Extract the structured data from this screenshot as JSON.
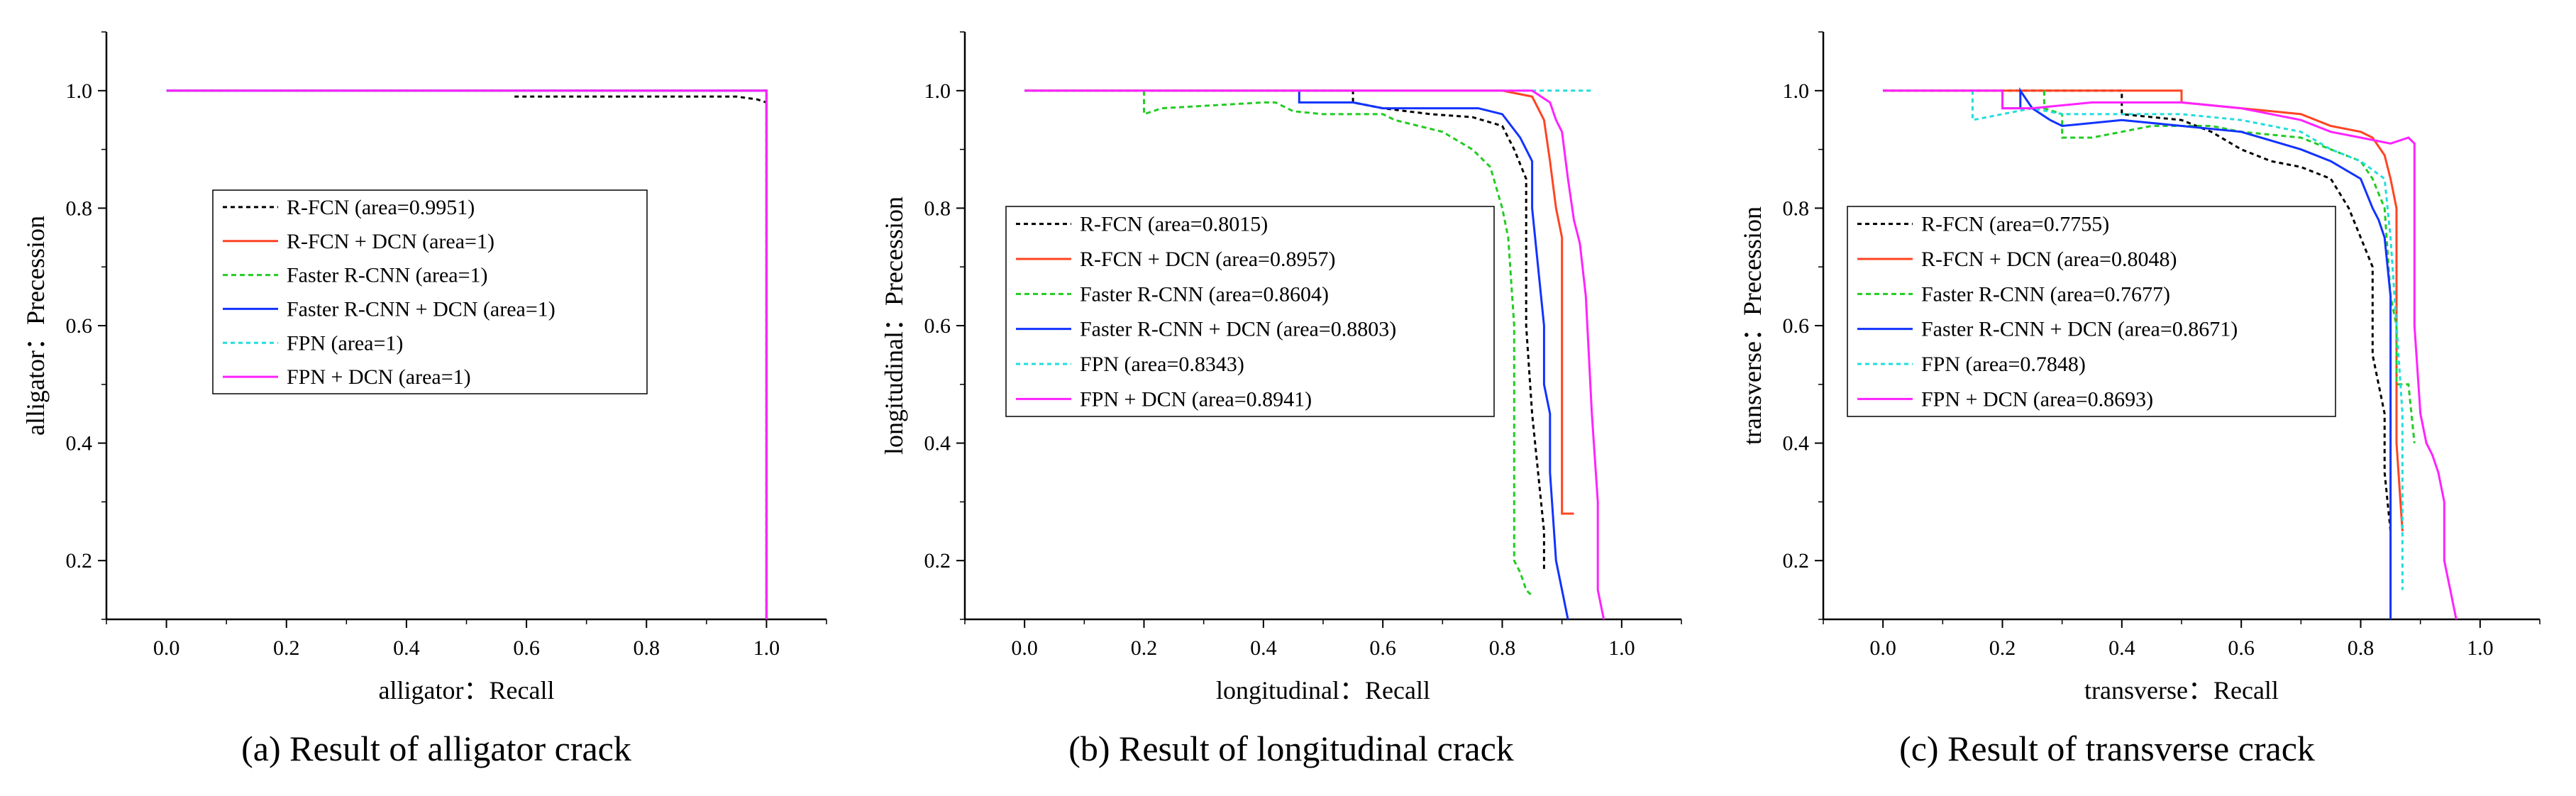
{
  "figure": {
    "series_styles": [
      {
        "color": "#000000",
        "dash": "6,5"
      },
      {
        "color": "#ff4422",
        "dash": ""
      },
      {
        "color": "#22cc22",
        "dash": "7,5"
      },
      {
        "color": "#1133ff",
        "dash": ""
      },
      {
        "color": "#22dddd",
        "dash": "6,5"
      },
      {
        "color": "#ff22ff",
        "dash": ""
      }
    ]
  },
  "chart_data": [
    {
      "type": "line",
      "title": "",
      "caption": "(a) Result of alligator crack",
      "xlabel": "alligator：Recall",
      "ylabel": "alligator：Precession",
      "xlim": [
        -0.1,
        1.1
      ],
      "ylim": [
        0.1,
        1.1
      ],
      "xticks": [
        "0.0",
        "0.2",
        "0.4",
        "0.6",
        "0.8",
        "1.0"
      ],
      "xtick_values": [
        0.0,
        0.2,
        0.4,
        0.6,
        0.8,
        1.0
      ],
      "yticks": [
        "0.2",
        "0.4",
        "0.6",
        "0.8",
        "1.0"
      ],
      "ytick_values": [
        0.2,
        0.4,
        0.6,
        0.8,
        1.0
      ],
      "legend_position": "center-left",
      "series": [
        {
          "name": "R-FCN (area=0.9951)",
          "points": [
            [
              0.58,
              0.99
            ],
            [
              0.7,
              0.99
            ],
            [
              0.85,
              0.99
            ],
            [
              0.95,
              0.99
            ],
            [
              0.985,
              0.985
            ],
            [
              1.0,
              0.98
            ],
            [
              1.0,
              0.1
            ]
          ]
        },
        {
          "name": "R-FCN + DCN (area=1)",
          "points": [
            [
              0.0,
              1.0
            ],
            [
              1.0,
              1.0
            ],
            [
              1.0,
              0.1
            ]
          ]
        },
        {
          "name": "Faster R-CNN (area=1)",
          "points": [
            [
              0.0,
              1.0
            ],
            [
              1.0,
              1.0
            ],
            [
              1.0,
              0.1
            ]
          ]
        },
        {
          "name": "Faster R-CNN + DCN (area=1)",
          "points": [
            [
              0.0,
              1.0
            ],
            [
              1.0,
              1.0
            ],
            [
              1.0,
              0.1
            ]
          ]
        },
        {
          "name": "FPN (area=1)",
          "points": [
            [
              0.0,
              1.0
            ],
            [
              1.0,
              1.0
            ],
            [
              1.0,
              0.1
            ]
          ]
        },
        {
          "name": "FPN + DCN (area=1)",
          "points": [
            [
              0.0,
              1.0
            ],
            [
              1.0,
              1.0
            ],
            [
              1.0,
              0.1
            ]
          ]
        }
      ]
    },
    {
      "type": "line",
      "title": "",
      "caption": "(b) Result of longitudinal crack",
      "xlabel": "longitudinal：Recall",
      "ylabel": "longitudinal：Precession",
      "xlim": [
        -0.1,
        1.1
      ],
      "ylim": [
        0.1,
        1.1
      ],
      "xticks": [
        "0.0",
        "0.2",
        "0.4",
        "0.6",
        "0.8",
        "1.0"
      ],
      "xtick_values": [
        0.0,
        0.2,
        0.4,
        0.6,
        0.8,
        1.0
      ],
      "yticks": [
        "0.2",
        "0.4",
        "0.6",
        "0.8",
        "1.0"
      ],
      "ytick_values": [
        0.2,
        0.4,
        0.6,
        0.8,
        1.0
      ],
      "legend_position": "center-left",
      "series": [
        {
          "name": "R-FCN (area=0.8015)",
          "points": [
            [
              0.0,
              1.0
            ],
            [
              0.55,
              1.0
            ],
            [
              0.55,
              0.98
            ],
            [
              0.6,
              0.97
            ],
            [
              0.68,
              0.96
            ],
            [
              0.75,
              0.955
            ],
            [
              0.8,
              0.94
            ],
            [
              0.82,
              0.9
            ],
            [
              0.84,
              0.85
            ],
            [
              0.84,
              0.6
            ],
            [
              0.85,
              0.45
            ],
            [
              0.86,
              0.35
            ],
            [
              0.87,
              0.25
            ],
            [
              0.87,
              0.18
            ]
          ]
        },
        {
          "name": "R-FCN + DCN (area=0.8957)",
          "points": [
            [
              0.0,
              1.0
            ],
            [
              0.8,
              1.0
            ],
            [
              0.85,
              0.99
            ],
            [
              0.86,
              0.97
            ],
            [
              0.87,
              0.95
            ],
            [
              0.88,
              0.88
            ],
            [
              0.89,
              0.8
            ],
            [
              0.9,
              0.75
            ],
            [
              0.9,
              0.65
            ],
            [
              0.9,
              0.52
            ],
            [
              0.9,
              0.43
            ],
            [
              0.9,
              0.28
            ],
            [
              0.92,
              0.28
            ]
          ]
        },
        {
          "name": "Faster R-CNN (area=0.8604)",
          "points": [
            [
              0.2,
              1.0
            ],
            [
              0.2,
              0.96
            ],
            [
              0.23,
              0.97
            ],
            [
              0.4,
              0.98
            ],
            [
              0.42,
              0.98
            ],
            [
              0.45,
              0.965
            ],
            [
              0.5,
              0.96
            ],
            [
              0.6,
              0.96
            ],
            [
              0.62,
              0.95
            ],
            [
              0.7,
              0.93
            ],
            [
              0.75,
              0.9
            ],
            [
              0.78,
              0.87
            ],
            [
              0.8,
              0.8
            ],
            [
              0.81,
              0.75
            ],
            [
              0.82,
              0.6
            ],
            [
              0.82,
              0.4
            ],
            [
              0.82,
              0.2
            ],
            [
              0.83,
              0.18
            ],
            [
              0.84,
              0.15
            ],
            [
              0.85,
              0.14
            ]
          ]
        },
        {
          "name": "Faster R-CNN + DCN (area=0.8803)",
          "points": [
            [
              0.46,
              1.0
            ],
            [
              0.46,
              0.98
            ],
            [
              0.55,
              0.98
            ],
            [
              0.6,
              0.97
            ],
            [
              0.7,
              0.97
            ],
            [
              0.76,
              0.97
            ],
            [
              0.8,
              0.96
            ],
            [
              0.83,
              0.92
            ],
            [
              0.85,
              0.88
            ],
            [
              0.85,
              0.8
            ],
            [
              0.86,
              0.7
            ],
            [
              0.87,
              0.6
            ],
            [
              0.87,
              0.5
            ],
            [
              0.88,
              0.45
            ],
            [
              0.88,
              0.35
            ],
            [
              0.89,
              0.2
            ],
            [
              0.9,
              0.15
            ],
            [
              0.91,
              0.1
            ]
          ]
        },
        {
          "name": "FPN (area=0.8343)",
          "points": [
            [
              0.0,
              1.0
            ],
            [
              0.95,
              1.0
            ]
          ]
        },
        {
          "name": "FPN + DCN (area=0.8941)",
          "points": [
            [
              0.0,
              1.0
            ],
            [
              0.85,
              1.0
            ],
            [
              0.88,
              0.98
            ],
            [
              0.89,
              0.95
            ],
            [
              0.9,
              0.93
            ],
            [
              0.91,
              0.85
            ],
            [
              0.92,
              0.78
            ],
            [
              0.93,
              0.74
            ],
            [
              0.94,
              0.65
            ],
            [
              0.95,
              0.45
            ],
            [
              0.96,
              0.3
            ],
            [
              0.96,
              0.15
            ],
            [
              0.97,
              0.1
            ]
          ]
        }
      ]
    },
    {
      "type": "line",
      "title": "",
      "caption": "(c) Result of transverse crack",
      "xlabel": "transverse：Recall",
      "ylabel": "transverse：Precession",
      "xlim": [
        -0.1,
        1.1
      ],
      "ylim": [
        0.1,
        1.1
      ],
      "xticks": [
        "0.0",
        "0.2",
        "0.4",
        "0.6",
        "0.8",
        "1.0"
      ],
      "xtick_values": [
        0.0,
        0.2,
        0.4,
        0.6,
        0.8,
        1.0
      ],
      "yticks": [
        "0.2",
        "0.4",
        "0.6",
        "0.8",
        "1.0"
      ],
      "ytick_values": [
        0.2,
        0.4,
        0.6,
        0.8,
        1.0
      ],
      "legend_position": "center-left",
      "series": [
        {
          "name": "R-FCN (area=0.7755)",
          "points": [
            [
              0.0,
              1.0
            ],
            [
              0.4,
              1.0
            ],
            [
              0.4,
              0.96
            ],
            [
              0.5,
              0.95
            ],
            [
              0.55,
              0.93
            ],
            [
              0.6,
              0.9
            ],
            [
              0.65,
              0.88
            ],
            [
              0.7,
              0.87
            ],
            [
              0.75,
              0.85
            ],
            [
              0.78,
              0.8
            ],
            [
              0.8,
              0.75
            ],
            [
              0.82,
              0.7
            ],
            [
              0.82,
              0.55
            ],
            [
              0.83,
              0.5
            ],
            [
              0.84,
              0.45
            ],
            [
              0.84,
              0.35
            ],
            [
              0.85,
              0.25
            ]
          ]
        },
        {
          "name": "R-FCN + DCN (area=0.8048)",
          "points": [
            [
              0.0,
              1.0
            ],
            [
              0.5,
              1.0
            ],
            [
              0.5,
              0.98
            ],
            [
              0.6,
              0.97
            ],
            [
              0.7,
              0.96
            ],
            [
              0.75,
              0.94
            ],
            [
              0.8,
              0.93
            ],
            [
              0.82,
              0.92
            ],
            [
              0.84,
              0.89
            ],
            [
              0.85,
              0.85
            ],
            [
              0.86,
              0.8
            ],
            [
              0.86,
              0.65
            ],
            [
              0.86,
              0.4
            ],
            [
              0.87,
              0.25
            ]
          ]
        },
        {
          "name": "Faster R-CNN (area=0.7677)",
          "points": [
            [
              0.27,
              1.0
            ],
            [
              0.27,
              0.97
            ],
            [
              0.3,
              0.96
            ],
            [
              0.3,
              0.92
            ],
            [
              0.35,
              0.92
            ],
            [
              0.45,
              0.94
            ],
            [
              0.55,
              0.94
            ],
            [
              0.6,
              0.93
            ],
            [
              0.7,
              0.92
            ],
            [
              0.75,
              0.9
            ],
            [
              0.8,
              0.88
            ],
            [
              0.82,
              0.85
            ],
            [
              0.84,
              0.8
            ],
            [
              0.85,
              0.65
            ],
            [
              0.86,
              0.6
            ],
            [
              0.86,
              0.5
            ],
            [
              0.87,
              0.5
            ],
            [
              0.88,
              0.5
            ],
            [
              0.89,
              0.4
            ]
          ]
        },
        {
          "name": "Faster R-CNN + DCN (area=0.8671)",
          "points": [
            [
              0.2,
              1.0
            ],
            [
              0.2,
              0.97
            ],
            [
              0.23,
              0.97
            ],
            [
              0.23,
              1.0
            ],
            [
              0.25,
              0.97
            ],
            [
              0.28,
              0.95
            ],
            [
              0.3,
              0.94
            ],
            [
              0.4,
              0.95
            ],
            [
              0.5,
              0.94
            ],
            [
              0.6,
              0.93
            ],
            [
              0.7,
              0.9
            ],
            [
              0.75,
              0.88
            ],
            [
              0.8,
              0.85
            ],
            [
              0.82,
              0.8
            ],
            [
              0.83,
              0.78
            ],
            [
              0.84,
              0.75
            ],
            [
              0.85,
              0.65
            ],
            [
              0.85,
              0.4
            ],
            [
              0.85,
              0.1
            ]
          ]
        },
        {
          "name": "FPN (area=0.7848)",
          "points": [
            [
              0.15,
              1.0
            ],
            [
              0.15,
              0.95
            ],
            [
              0.2,
              0.96
            ],
            [
              0.25,
              0.97
            ],
            [
              0.3,
              0.96
            ],
            [
              0.4,
              0.96
            ],
            [
              0.5,
              0.96
            ],
            [
              0.6,
              0.95
            ],
            [
              0.7,
              0.93
            ],
            [
              0.75,
              0.9
            ],
            [
              0.8,
              0.88
            ],
            [
              0.84,
              0.85
            ],
            [
              0.85,
              0.75
            ],
            [
              0.86,
              0.6
            ],
            [
              0.87,
              0.45
            ],
            [
              0.87,
              0.3
            ],
            [
              0.87,
              0.15
            ]
          ]
        },
        {
          "name": "FPN + DCN (area=0.8693)",
          "points": [
            [
              0.0,
              1.0
            ],
            [
              0.2,
              1.0
            ],
            [
              0.2,
              0.97
            ],
            [
              0.25,
              0.97
            ],
            [
              0.35,
              0.98
            ],
            [
              0.5,
              0.98
            ],
            [
              0.6,
              0.97
            ],
            [
              0.7,
              0.95
            ],
            [
              0.75,
              0.93
            ],
            [
              0.8,
              0.92
            ],
            [
              0.85,
              0.91
            ],
            [
              0.88,
              0.92
            ],
            [
              0.89,
              0.91
            ],
            [
              0.89,
              0.6
            ],
            [
              0.9,
              0.45
            ],
            [
              0.91,
              0.4
            ],
            [
              0.92,
              0.38
            ],
            [
              0.93,
              0.35
            ],
            [
              0.94,
              0.3
            ],
            [
              0.94,
              0.2
            ],
            [
              0.95,
              0.15
            ],
            [
              0.96,
              0.1
            ]
          ]
        }
      ]
    }
  ]
}
